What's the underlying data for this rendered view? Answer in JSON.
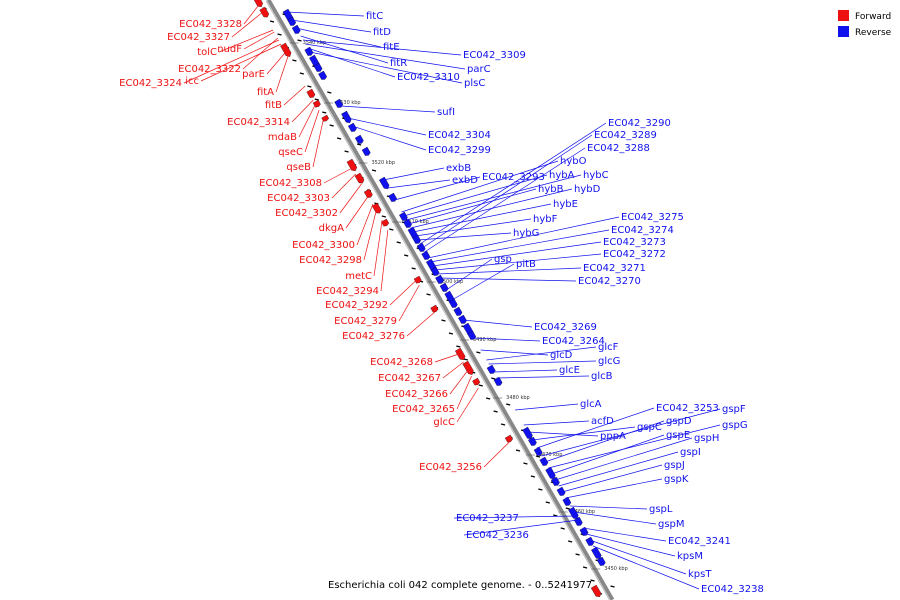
{
  "caption": "Escherichia coli 042 complete genome. - 0..5241977",
  "legend": [
    {
      "label": "Forward",
      "color": "#ee1111"
    },
    {
      "label": "Reverse",
      "color": "#1111ee"
    }
  ],
  "colors": {
    "forward": "#ee1111",
    "reverse": "#1111ee",
    "backbone": "#888888"
  },
  "ticks": [
    "3540 kbp",
    "3530 kbp",
    "3520 kbp",
    "3510 kbp",
    "3500 kbp",
    "3490 kbp",
    "3480 kbp",
    "3470 kbp",
    "3460 kbp",
    "3450 kbp"
  ],
  "forward_labels": [
    "EC042_3328",
    "EC042_3327",
    "tolC",
    "nudF",
    "EC042_3322",
    "EC042_3324",
    "icc",
    "parE",
    "fitA",
    "fitB",
    "EC042_3314",
    "mdaB",
    "qseC",
    "qseB",
    "EC042_3308",
    "EC042_3303",
    "EC042_3302",
    "dkgA",
    "EC042_3300",
    "EC042_3298",
    "metC",
    "EC042_3294",
    "EC042_3292",
    "EC042_3279",
    "EC042_3276",
    "EC042_3268",
    "EC042_3267",
    "EC042_3266",
    "EC042_3265",
    "glcC",
    "EC042_3256"
  ],
  "reverse_labels": [
    "fitC",
    "fitD",
    "fitE",
    "fitR",
    "EC042_3309",
    "parC",
    "EC042_3310",
    "plsC",
    "sufI",
    "EC042_3304",
    "EC042_3299",
    "exbB",
    "exbD",
    "EC042_3293",
    "hybO",
    "hybA",
    "hybC",
    "hybB",
    "hybD",
    "hybE",
    "hybF",
    "hybG",
    "EC042_3290",
    "EC042_3289",
    "EC042_3288",
    "EC042_3275",
    "EC042_3274",
    "EC042_3273",
    "EC042_3272",
    "EC042_3271",
    "EC042_3270",
    "gsp",
    "pitB",
    "EC042_3269",
    "EC042_3264",
    "glcD",
    "glcF",
    "glcG",
    "glcE",
    "glcB",
    "glcA",
    "acfD",
    "pppA",
    "gspC",
    "EC042_3253",
    "gspF",
    "gspD",
    "gspG",
    "gspE",
    "gspH",
    "gspI",
    "gspJ",
    "gspK",
    "gspL",
    "gspM",
    "EC042_3237",
    "EC042_3236",
    "EC042_3241",
    "kpsM",
    "kpsT",
    "EC042_3238"
  ]
}
